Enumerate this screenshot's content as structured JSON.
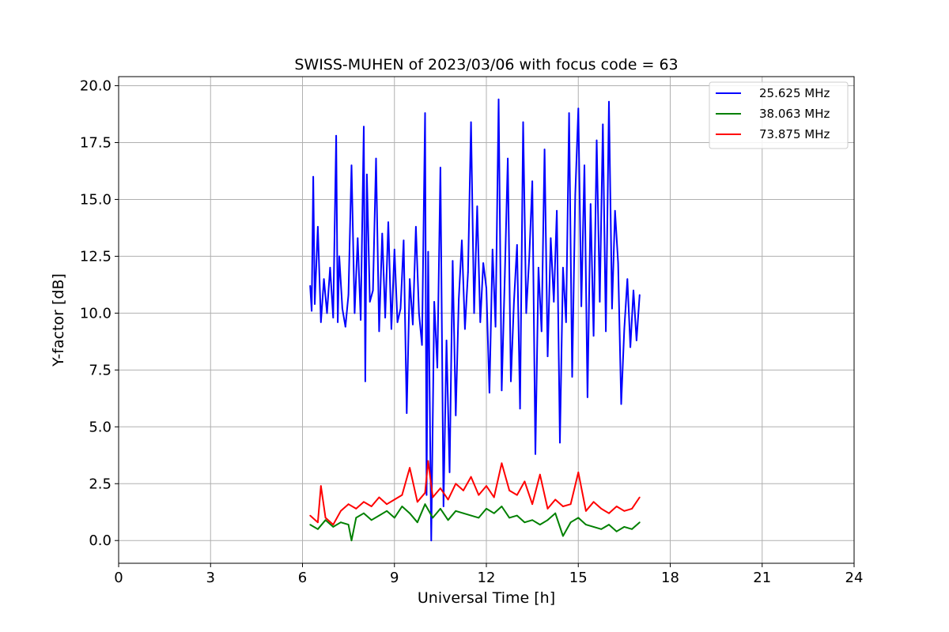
{
  "chart_data": {
    "type": "line",
    "title": "SWISS-MUHEN of 2023/03/06 with focus code = 63",
    "xlabel": "Universal Time [h]",
    "ylabel": "Y-factor [dB]",
    "xlim": [
      0,
      24
    ],
    "ylim": [
      -1.0,
      20.4
    ],
    "xticks": [
      0,
      3,
      6,
      9,
      12,
      15,
      18,
      21,
      24
    ],
    "xtick_labels": [
      "0",
      "3",
      "6",
      "9",
      "12",
      "15",
      "18",
      "21",
      "24"
    ],
    "yticks": [
      0,
      2.5,
      5,
      7.5,
      10,
      12.5,
      15,
      17.5,
      20
    ],
    "ytick_labels": [
      "0.0",
      "2.5",
      "5.0",
      "7.5",
      "10.0",
      "12.5",
      "15.0",
      "17.5",
      "20.0"
    ],
    "grid": true,
    "legend_position": "top-right",
    "series": [
      {
        "name": "25.625 MHz",
        "color": "#0000ff",
        "x": [
          6.25,
          6.3,
          6.35,
          6.4,
          6.5,
          6.6,
          6.7,
          6.8,
          6.9,
          7.0,
          7.1,
          7.15,
          7.2,
          7.3,
          7.4,
          7.5,
          7.6,
          7.7,
          7.8,
          7.9,
          8.0,
          8.05,
          8.1,
          8.2,
          8.3,
          8.4,
          8.5,
          8.6,
          8.7,
          8.8,
          8.9,
          9.0,
          9.1,
          9.2,
          9.3,
          9.4,
          9.5,
          9.6,
          9.7,
          9.8,
          9.9,
          10.0,
          10.05,
          10.1,
          10.2,
          10.3,
          10.4,
          10.5,
          10.6,
          10.7,
          10.8,
          10.9,
          11.0,
          11.1,
          11.2,
          11.3,
          11.4,
          11.5,
          11.6,
          11.7,
          11.8,
          11.9,
          12.0,
          12.1,
          12.2,
          12.3,
          12.4,
          12.5,
          12.6,
          12.7,
          12.8,
          12.9,
          13.0,
          13.1,
          13.2,
          13.3,
          13.4,
          13.5,
          13.6,
          13.7,
          13.8,
          13.9,
          14.0,
          14.1,
          14.2,
          14.3,
          14.4,
          14.5,
          14.6,
          14.7,
          14.8,
          14.9,
          15.0,
          15.1,
          15.2,
          15.3,
          15.4,
          15.5,
          15.6,
          15.7,
          15.8,
          15.9,
          16.0,
          16.1,
          16.2,
          16.3,
          16.4,
          16.5,
          16.6,
          16.7,
          16.8,
          16.9,
          17.0
        ],
        "values": [
          11.2,
          10.1,
          16.0,
          10.4,
          13.8,
          9.6,
          11.5,
          10.0,
          12.0,
          9.8,
          17.8,
          9.6,
          12.5,
          10.2,
          9.4,
          10.8,
          16.5,
          10.0,
          13.3,
          9.7,
          18.2,
          7.0,
          16.1,
          10.5,
          11.0,
          16.8,
          9.2,
          13.5,
          9.8,
          14.0,
          9.3,
          12.8,
          9.6,
          10.2,
          13.2,
          5.6,
          11.5,
          9.5,
          13.8,
          10.0,
          8.6,
          18.8,
          2.0,
          12.7,
          0.0,
          10.5,
          7.6,
          16.4,
          1.5,
          8.8,
          3.0,
          12.3,
          5.5,
          10.6,
          13.2,
          9.3,
          11.8,
          18.4,
          10.0,
          14.7,
          9.6,
          12.2,
          11.1,
          6.5,
          12.8,
          9.4,
          19.4,
          6.6,
          11.6,
          16.8,
          7.0,
          10.5,
          13.0,
          5.8,
          18.4,
          10.0,
          12.5,
          15.8,
          3.8,
          12.0,
          9.2,
          17.2,
          8.1,
          13.3,
          10.5,
          14.5,
          4.3,
          12.0,
          9.6,
          18.8,
          7.2,
          15.2,
          19.0,
          10.3,
          16.5,
          6.3,
          14.8,
          9.0,
          17.6,
          10.5,
          18.3,
          9.2,
          19.3,
          10.2,
          14.5,
          12.2,
          6.0,
          9.3,
          11.5,
          8.5,
          11.0,
          8.8,
          10.8
        ]
      },
      {
        "name": "38.063 MHz",
        "color": "#008000",
        "x": [
          6.25,
          6.5,
          6.75,
          7.0,
          7.25,
          7.5,
          7.6,
          7.75,
          8.0,
          8.25,
          8.5,
          8.75,
          9.0,
          9.25,
          9.5,
          9.75,
          10.0,
          10.25,
          10.5,
          10.75,
          11.0,
          11.25,
          11.5,
          11.75,
          12.0,
          12.25,
          12.5,
          12.75,
          13.0,
          13.25,
          13.5,
          13.75,
          14.0,
          14.25,
          14.5,
          14.75,
          15.0,
          15.25,
          15.5,
          15.75,
          16.0,
          16.25,
          16.5,
          16.75,
          17.0
        ],
        "values": [
          0.7,
          0.5,
          0.9,
          0.6,
          0.8,
          0.7,
          0.0,
          1.0,
          1.2,
          0.9,
          1.1,
          1.3,
          1.0,
          1.5,
          1.2,
          0.8,
          1.6,
          1.0,
          1.4,
          0.9,
          1.3,
          1.2,
          1.1,
          1.0,
          1.4,
          1.2,
          1.5,
          1.0,
          1.1,
          0.8,
          0.9,
          0.7,
          0.9,
          1.2,
          0.2,
          0.8,
          1.0,
          0.7,
          0.6,
          0.5,
          0.7,
          0.4,
          0.6,
          0.5,
          0.8
        ]
      },
      {
        "name": "73.875 MHz",
        "color": "#ff0000",
        "x": [
          6.25,
          6.5,
          6.6,
          6.75,
          7.0,
          7.25,
          7.5,
          7.75,
          8.0,
          8.25,
          8.5,
          8.75,
          9.0,
          9.25,
          9.5,
          9.75,
          10.0,
          10.1,
          10.25,
          10.5,
          10.75,
          11.0,
          11.25,
          11.5,
          11.75,
          12.0,
          12.25,
          12.5,
          12.75,
          13.0,
          13.25,
          13.5,
          13.75,
          14.0,
          14.25,
          14.5,
          14.75,
          15.0,
          15.25,
          15.5,
          15.75,
          16.0,
          16.25,
          16.5,
          16.75,
          17.0
        ],
        "values": [
          1.1,
          0.8,
          2.4,
          1.0,
          0.7,
          1.3,
          1.6,
          1.4,
          1.7,
          1.5,
          1.9,
          1.6,
          1.8,
          2.0,
          3.2,
          1.7,
          2.1,
          3.5,
          1.9,
          2.3,
          1.8,
          2.5,
          2.2,
          2.8,
          2.0,
          2.4,
          1.9,
          3.4,
          2.2,
          2.0,
          2.6,
          1.6,
          2.9,
          1.4,
          1.8,
          1.5,
          1.6,
          3.0,
          1.3,
          1.7,
          1.4,
          1.2,
          1.5,
          1.3,
          1.4,
          1.9
        ]
      }
    ]
  }
}
